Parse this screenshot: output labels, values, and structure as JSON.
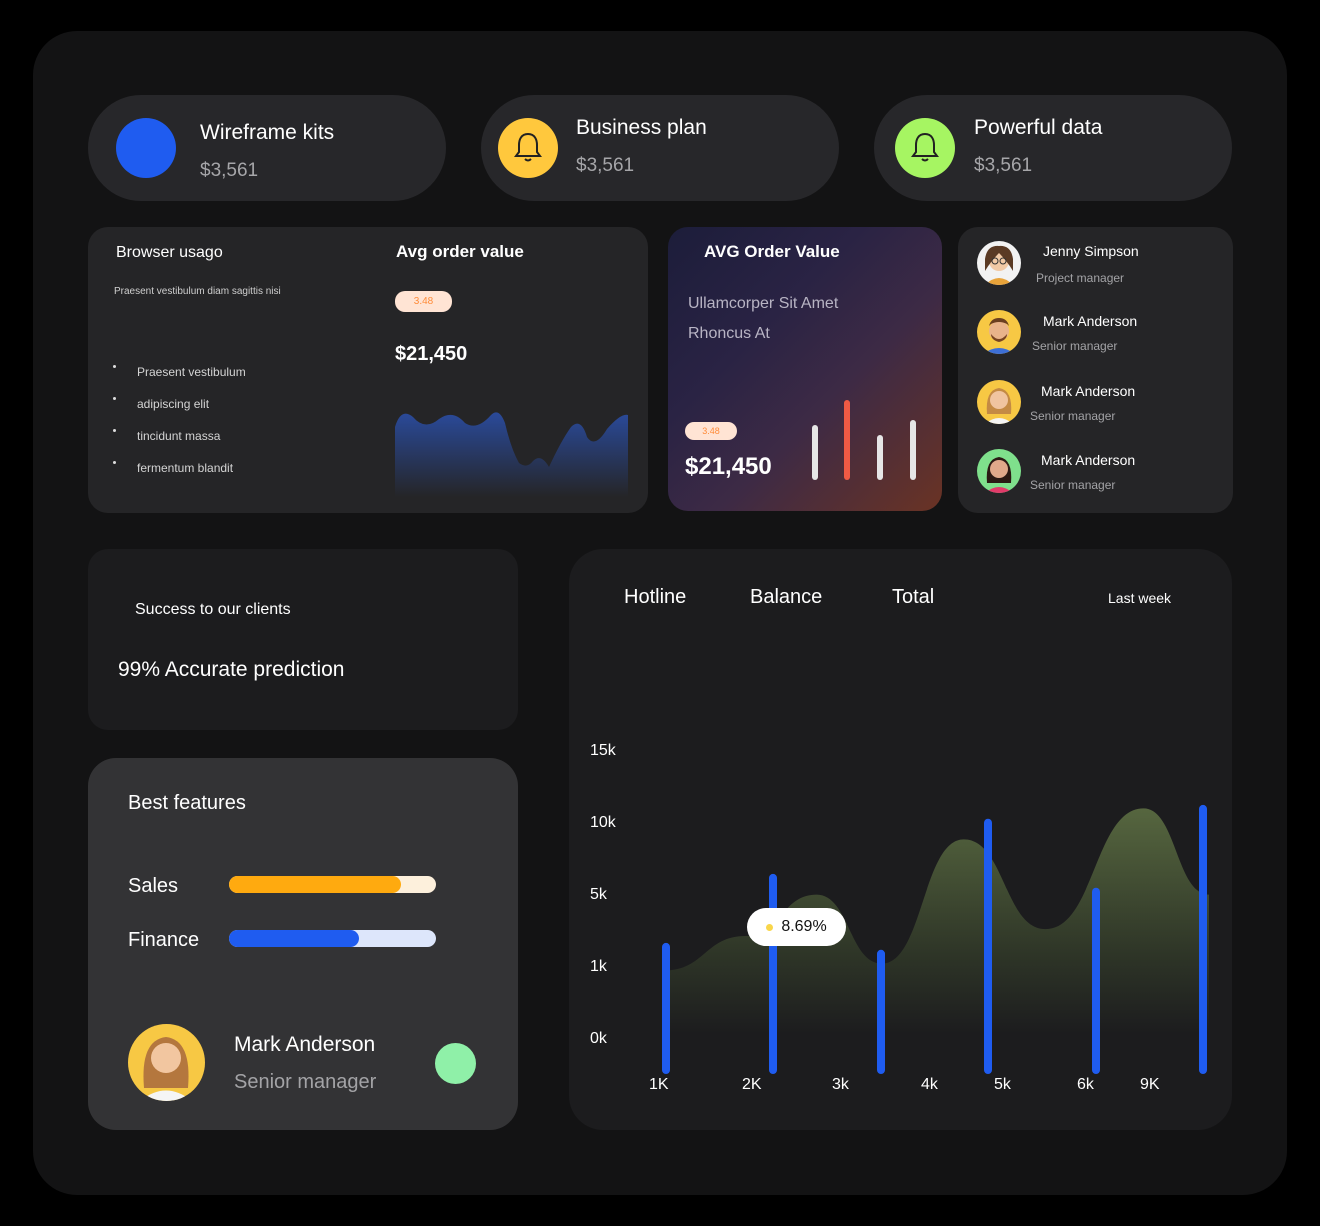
{
  "stats": [
    {
      "title": "Wireframe kits",
      "amount": "$3,561",
      "icon": "blue-dot-icon",
      "color": "#1f5cf0"
    },
    {
      "title": "Business plan",
      "amount": "$3,561",
      "icon": "bell-icon",
      "color": "#ffc83d"
    },
    {
      "title": "Powerful data",
      "amount": "$3,561",
      "icon": "bell-icon",
      "color": "#a6f562"
    }
  ],
  "browser": {
    "title": "Browser usago",
    "subtitle": "Praesent vestibulum diam sagittis nisi",
    "items": [
      "Praesent vestibulum",
      "adipiscing elit",
      "tincidunt massa",
      "fermentum blandit"
    ]
  },
  "avg_order": {
    "title": "Avg order value",
    "badge": "3.48",
    "value": "$21,450"
  },
  "avg_order_card": {
    "title": "AVG Order Value",
    "line1": "Ullamcorper Sit Amet",
    "line2": "Rhoncus At",
    "badge": "3.48",
    "value": "$21,450",
    "bars": [
      {
        "level": 0.55,
        "color": "#e6e6e6"
      },
      {
        "level": 0.8,
        "color": "#ef5a44"
      },
      {
        "level": 0.45,
        "color": "#e6e6e6"
      },
      {
        "level": 0.6,
        "color": "#e6e6e6"
      }
    ]
  },
  "team": [
    {
      "name": "Jenny Simpson",
      "role": "Project manager"
    },
    {
      "name": "Mark Anderson",
      "role": "Senior manager"
    },
    {
      "name": "Mark Anderson",
      "role": "Senior manager"
    },
    {
      "name": "Mark Anderson",
      "role": "Senior manager"
    }
  ],
  "success": {
    "title": "Success to our clients",
    "text": "99% Accurate prediction"
  },
  "features": {
    "title": "Best features",
    "bars": [
      {
        "label": "Sales",
        "progress": 0.83,
        "fill": "#ffaa0f",
        "track": "#fdf0dc"
      },
      {
        "label": "Finance",
        "progress": 0.63,
        "fill": "#1f5cf0",
        "track": "#dde6fb"
      }
    ],
    "person": {
      "name": "Mark Anderson",
      "role": "Senior manager",
      "status_color": "#8ff0a8"
    }
  },
  "chart_data": {
    "type": "area",
    "tabs": [
      "Hotline",
      "Balance",
      "Total"
    ],
    "period": "Last week",
    "y_ticks": [
      "15k",
      "10k",
      "5k",
      "1k",
      "0k"
    ],
    "x_ticks": [
      "1K",
      "2K",
      "3k",
      "4k",
      "5k",
      "6k",
      "9K"
    ],
    "callout": "8.69%",
    "area_series": [
      {
        "x": 0.0,
        "y": 0.3
      },
      {
        "x": 0.15,
        "y": 0.4
      },
      {
        "x": 0.28,
        "y": 0.52
      },
      {
        "x": 0.4,
        "y": 0.32
      },
      {
        "x": 0.55,
        "y": 0.68
      },
      {
        "x": 0.7,
        "y": 0.42
      },
      {
        "x": 0.88,
        "y": 0.77
      },
      {
        "x": 1.0,
        "y": 0.52
      }
    ],
    "bars": [
      0.38,
      0.58,
      0.36,
      0.74,
      0.54,
      0.78
    ]
  }
}
